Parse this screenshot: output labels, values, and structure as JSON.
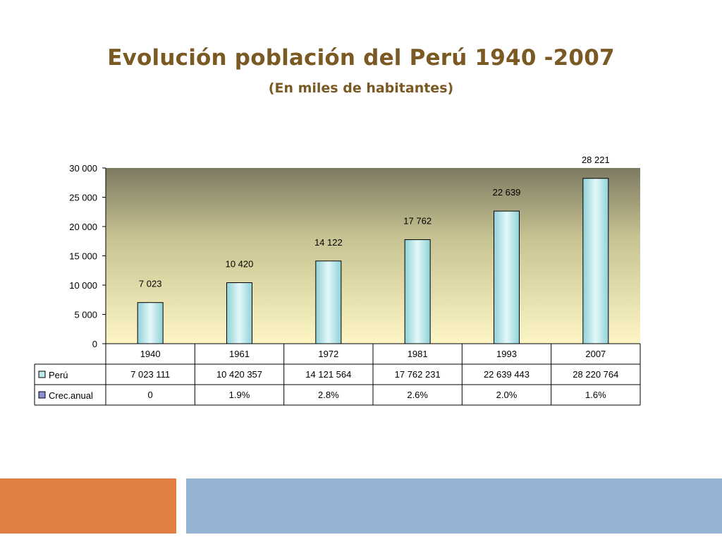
{
  "slide": {
    "title": "Evolución población del Perú 1940 -2007",
    "subtitle": "(En miles de habitantes)"
  },
  "colors": {
    "title": "#7a5a22",
    "bar_fill": "#bfe8ec",
    "plot_top": "#7d7a62",
    "plot_bottom": "#fdf6c4",
    "footer_left": "#e07e43",
    "footer_right": "#95b3d3"
  },
  "chart_data": {
    "type": "bar",
    "categories": [
      "1940",
      "1961",
      "1972",
      "1981",
      "1993",
      "2007"
    ],
    "series": [
      {
        "name": "Perú",
        "values": [
          7023,
          10420,
          14122,
          17762,
          22639,
          28221
        ],
        "data_labels": [
          "7 023",
          "10 420",
          "14 122",
          "17 762",
          "22 639",
          "28 221"
        ],
        "table_values": [
          "7 023 111",
          "10 420 357",
          "14 121 564",
          "17 762 231",
          "22 639 443",
          "28 220 764"
        ]
      },
      {
        "name": "Crec.anual",
        "table_values": [
          "0",
          "1.9%",
          "2.8%",
          "2.6%",
          "2.0%",
          "1.6%"
        ]
      }
    ],
    "ylim": [
      0,
      30000
    ],
    "yticks": [
      0,
      5000,
      10000,
      15000,
      20000,
      25000,
      30000
    ],
    "ytick_labels": [
      "0",
      "5 000",
      "10 000",
      "15 000",
      "20 000",
      "25 000",
      "30 000"
    ],
    "grid": false,
    "legend": "data-table-left"
  }
}
